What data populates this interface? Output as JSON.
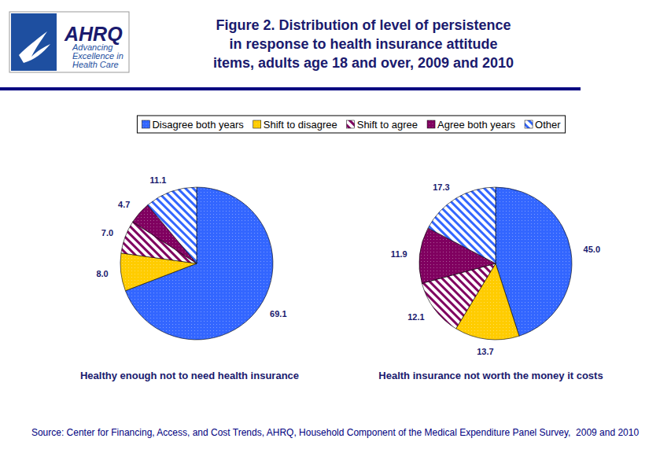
{
  "header": {
    "brand": "AHRQ",
    "tagline": [
      "Advancing",
      "Excellence in",
      "Health Care"
    ]
  },
  "chart_data": {
    "type": "pie",
    "title": [
      "Figure 2. Distribution of level of persistence",
      "in response to health insurance attitude",
      "items, adults age 18 and over, 2009 and 2010"
    ],
    "categories": [
      "Disagree both years",
      "Shift to disagree",
      "Shift to agree",
      "Agree both years",
      "Other"
    ],
    "colors": [
      "#3366ff",
      "#ffcc00",
      "#800060",
      "#800060",
      "#3366ff"
    ],
    "legend": "top",
    "data_labels": true,
    "series": [
      {
        "name": "Healthy enough not to need health insurance",
        "values": [
          69.1,
          8.0,
          7.0,
          4.7,
          11.1
        ],
        "value_labels": [
          "69.1",
          "8.0",
          "7.0",
          "4.7",
          "11.1"
        ]
      },
      {
        "name": "Health insurance not worth the money it costs",
        "values": [
          45.0,
          13.7,
          12.1,
          11.9,
          17.3
        ],
        "value_labels": [
          "45.0",
          "13.7",
          "12.1",
          "11.9",
          "17.3"
        ]
      }
    ]
  },
  "source": "Source: Center for Financing, Access, and Cost Trends, AHRQ, Household Component of the Medical Expenditure Panel Survey,  2009 and 2010"
}
